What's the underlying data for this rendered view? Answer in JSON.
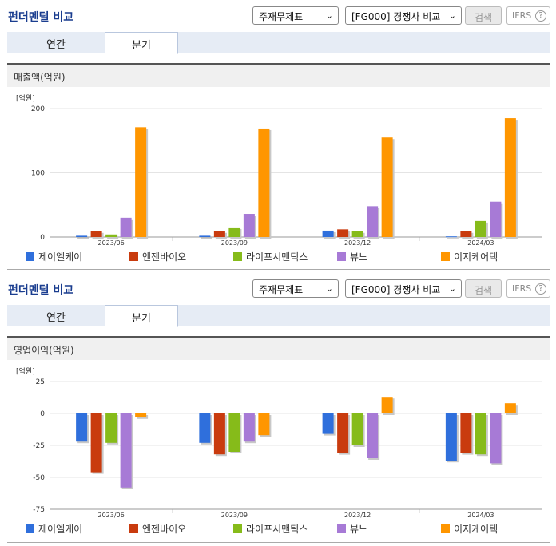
{
  "header": {
    "title": "펀더멘털 비교",
    "select_statement": "주재무제표",
    "select_peer": "[FG000] 경쟁사 비교",
    "search_label": "검색",
    "ifrs_label": "IFRS",
    "help_glyph": "?"
  },
  "tabs": [
    {
      "label": "연간"
    },
    {
      "label": "분기"
    }
  ],
  "colors": {
    "제이엘케이": "#2f6fdc",
    "엔젠바이오": "#c93b0e",
    "라이프시맨틱스": "#86bb1a",
    "뷰노": "#a77ad6",
    "이지케어텍": "#ff9600"
  },
  "charts": [
    {
      "section_title": "매출액(억원)",
      "unit_label": "[억원]"
    },
    {
      "section_title": "영업이익(억원)",
      "unit_label": "[억원]"
    }
  ],
  "chart_data": [
    {
      "type": "bar",
      "title": "매출액(억원)",
      "ylabel": "[억원]",
      "categories": [
        "2023/06",
        "2023/09",
        "2023/12",
        "2024/03"
      ],
      "ylim": [
        0,
        200
      ],
      "yticks": [
        0,
        100,
        200
      ],
      "series": [
        {
          "name": "제이엘케이",
          "values": [
            2,
            2,
            10,
            1
          ]
        },
        {
          "name": "엔젠바이오",
          "values": [
            9,
            9,
            12,
            9
          ]
        },
        {
          "name": "라이프시맨틱스",
          "values": [
            4,
            15,
            9,
            25
          ]
        },
        {
          "name": "뷰노",
          "values": [
            30,
            36,
            48,
            55
          ]
        },
        {
          "name": "이지케어텍",
          "values": [
            171,
            169,
            155,
            185
          ]
        }
      ],
      "legend": "bottom",
      "grid": true
    },
    {
      "type": "bar",
      "title": "영업이익(억원)",
      "ylabel": "[억원]",
      "categories": [
        "2023/06",
        "2023/09",
        "2023/12",
        "2024/03"
      ],
      "ylim": [
        -75,
        25
      ],
      "yticks": [
        25,
        0,
        -25,
        -50,
        -75
      ],
      "series": [
        {
          "name": "제이엘케이",
          "values": [
            -22,
            -23,
            -16,
            -37
          ]
        },
        {
          "name": "엔젠바이오",
          "values": [
            -46,
            -32,
            -31,
            -31
          ]
        },
        {
          "name": "라이프시맨틱스",
          "values": [
            -23,
            -30,
            -25,
            -32
          ]
        },
        {
          "name": "뷰노",
          "values": [
            -58,
            -22,
            -35,
            -39
          ]
        },
        {
          "name": "이지케어텍",
          "values": [
            -3,
            -17,
            13,
            8
          ]
        }
      ],
      "legend": "bottom",
      "grid": true
    }
  ]
}
